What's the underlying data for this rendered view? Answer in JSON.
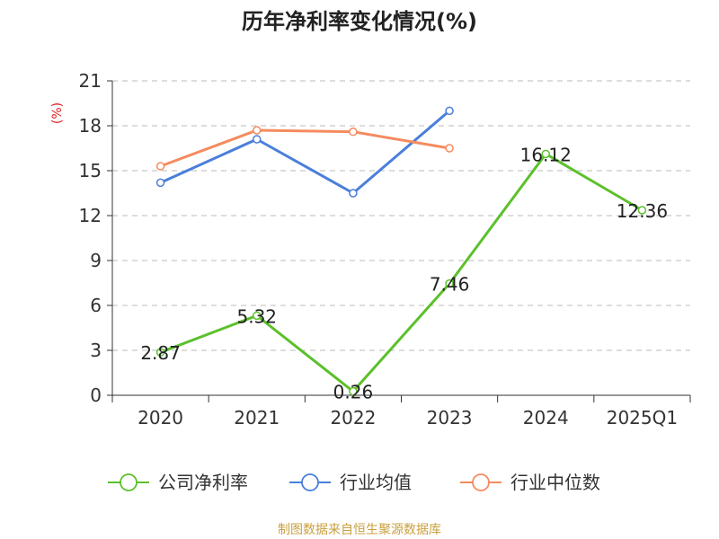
{
  "chart_data": {
    "type": "line",
    "title": "历年净利率变化情况(%)",
    "unit": "(%)",
    "categories": [
      "2020",
      "2021",
      "2022",
      "2023",
      "2024",
      "2025Q1"
    ],
    "ylim": [
      0,
      21
    ],
    "yticks": [
      "0",
      "3",
      "6",
      "9",
      "12",
      "15",
      "18",
      "21"
    ],
    "grid": true,
    "legend_position": "bottom",
    "series": [
      {
        "name": "公司净利率",
        "color": "#5cc02b",
        "values": [
          2.87,
          5.32,
          0.26,
          7.46,
          16.12,
          12.36
        ],
        "labels": [
          "2.87",
          "5.32",
          "0.26",
          "7.46",
          "16.12",
          "12.36"
        ]
      },
      {
        "name": "行业均值",
        "color": "#4a7fdb",
        "values": [
          14.2,
          17.1,
          13.5,
          19.0,
          null,
          null
        ]
      },
      {
        "name": "行业中位数",
        "color": "#f58b5f",
        "values": [
          15.3,
          17.7,
          17.6,
          16.5,
          null,
          null
        ]
      }
    ],
    "unit_color": "#e02020"
  },
  "source": {
    "text": "制图数据来自恒生聚源数据库",
    "color": "#c8a040"
  }
}
